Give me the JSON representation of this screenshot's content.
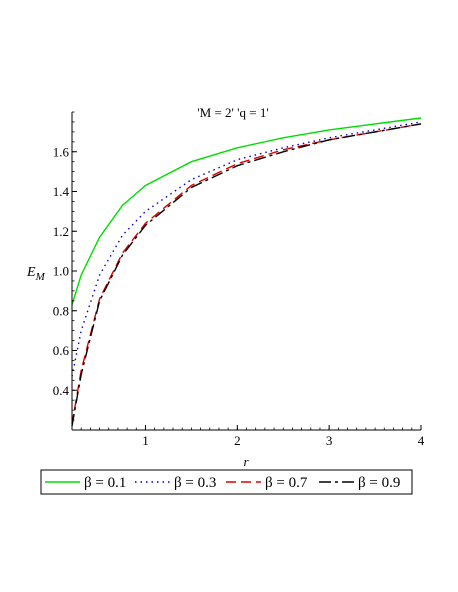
{
  "chart_data": {
    "type": "line",
    "title": "'M = 2' 'q = 1'",
    "xlabel": "r",
    "ylabel": "E",
    "ylabel_sub": "M",
    "xlim": [
      0.2,
      4
    ],
    "ylim": [
      0.2,
      1.8
    ],
    "xticks": [
      1,
      2,
      3,
      4
    ],
    "xtick_labels": [
      "1",
      "2",
      "3",
      "4"
    ],
    "yticks": [
      0.4,
      0.6,
      0.8,
      1.0,
      1.2,
      1.4,
      1.6
    ],
    "ytick_labels": [
      "0.4",
      "0.6",
      "0.8",
      "1.0",
      "1.2",
      "1.4",
      "1.6"
    ],
    "grid": false,
    "legend_position": "bottom",
    "series": [
      {
        "name": "β = 0.1",
        "color": "#00dd00",
        "style": "solid",
        "x": [
          0.2,
          0.3,
          0.5,
          0.75,
          1.0,
          1.5,
          2.0,
          2.5,
          3.0,
          3.5,
          4.0
        ],
        "y": [
          0.83,
          0.98,
          1.17,
          1.33,
          1.43,
          1.55,
          1.62,
          1.67,
          1.71,
          1.74,
          1.77
        ]
      },
      {
        "name": "β = 0.3",
        "color": "#0000cc",
        "style": "dotted",
        "x": [
          0.2,
          0.3,
          0.5,
          0.75,
          1.0,
          1.5,
          2.0,
          2.5,
          3.0,
          3.5,
          4.0
        ],
        "y": [
          0.47,
          0.7,
          0.98,
          1.18,
          1.3,
          1.46,
          1.56,
          1.62,
          1.67,
          1.71,
          1.75
        ]
      },
      {
        "name": "β = 0.7",
        "color": "#dd0000",
        "style": "dashed",
        "x": [
          0.2,
          0.3,
          0.5,
          0.75,
          1.0,
          1.5,
          2.0,
          2.5,
          3.0,
          3.5,
          4.0
        ],
        "y": [
          0.23,
          0.5,
          0.86,
          1.09,
          1.24,
          1.43,
          1.54,
          1.61,
          1.66,
          1.7,
          1.74
        ]
      },
      {
        "name": "β = 0.9",
        "color": "#000000",
        "style": "dashdot",
        "x": [
          0.2,
          0.3,
          0.5,
          0.75,
          1.0,
          1.5,
          2.0,
          2.5,
          3.0,
          3.5,
          4.0
        ],
        "y": [
          0.22,
          0.48,
          0.85,
          1.08,
          1.23,
          1.42,
          1.53,
          1.6,
          1.66,
          1.7,
          1.74
        ]
      }
    ]
  }
}
